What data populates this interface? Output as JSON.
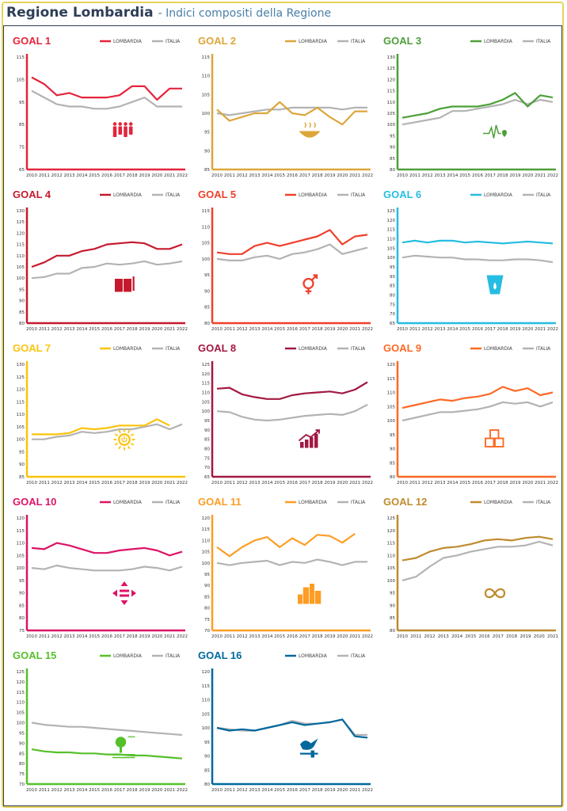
{
  "header": {
    "title": "Regione Lombardia",
    "subtitle": "- Indici compositi della Regione"
  },
  "legend": {
    "region": "LOMBARDIA",
    "country": "ITALIA"
  },
  "colors": {
    "italia": "#b3b3b3",
    "frame": "#e7d45a",
    "border": "#2f3e57"
  },
  "chart_data": [
    {
      "type": "line",
      "title": "GOAL 1",
      "color": "#e5243b",
      "icon": "family-icon",
      "x": [
        "2010",
        "2011",
        "2012",
        "2013",
        "2014",
        "2015",
        "2016",
        "2017",
        "2018",
        "2019",
        "2020",
        "2021",
        "2022"
      ],
      "ylim": [
        65,
        115
      ],
      "yticks": [
        65,
        75,
        85,
        95,
        105,
        115
      ],
      "series": [
        {
          "name": "LOMBARDIA",
          "values": [
            106,
            103,
            98,
            99,
            97,
            97,
            97,
            98,
            102,
            102,
            96,
            101,
            101
          ]
        },
        {
          "name": "ITALIA",
          "values": [
            100,
            97,
            94,
            93,
            93,
            92,
            92,
            93,
            95,
            97,
            93,
            93,
            93
          ]
        }
      ]
    },
    {
      "type": "line",
      "title": "GOAL 2",
      "color": "#dda63a",
      "icon": "bowl-icon",
      "x": [
        "2010",
        "2011",
        "2012",
        "2013",
        "2014",
        "2015",
        "2016",
        "2017",
        "2018",
        "2019",
        "2020",
        "2021",
        "2022"
      ],
      "ylim": [
        85,
        115
      ],
      "yticks": [
        85,
        90,
        95,
        100,
        105,
        110,
        115
      ],
      "series": [
        {
          "name": "LOMBARDIA",
          "values": [
            101,
            98,
            99,
            100,
            100,
            103,
            100,
            99.5,
            101.5,
            99,
            97,
            100.5,
            100.5
          ]
        },
        {
          "name": "ITALIA",
          "values": [
            100,
            99.5,
            100,
            100.5,
            101,
            101,
            101.5,
            101.5,
            101.5,
            101.5,
            101,
            101.5,
            101.5
          ]
        }
      ]
    },
    {
      "type": "line",
      "title": "GOAL 3",
      "color": "#4c9f38",
      "icon": "heartbeat-icon",
      "x": [
        "2010",
        "2011",
        "2012",
        "2013",
        "2014",
        "2015",
        "2016",
        "2017",
        "2018",
        "2019",
        "2020",
        "2021",
        "2022"
      ],
      "ylim": [
        80,
        130
      ],
      "yticks": [
        80,
        85,
        90,
        95,
        100,
        105,
        110,
        115,
        120,
        125,
        130
      ],
      "series": [
        {
          "name": "LOMBARDIA",
          "values": [
            103,
            104,
            105,
            107,
            108,
            108,
            108,
            109,
            111,
            114,
            108,
            113,
            112
          ]
        },
        {
          "name": "ITALIA",
          "values": [
            100,
            101,
            102,
            103,
            106,
            106,
            107,
            108,
            109,
            111,
            109,
            111,
            110
          ]
        }
      ]
    },
    {
      "type": "line",
      "title": "GOAL 4",
      "color": "#c5192d",
      "icon": "book-icon",
      "x": [
        "2010",
        "2011",
        "2012",
        "2013",
        "2014",
        "2015",
        "2016",
        "2017",
        "2018",
        "2019",
        "2020",
        "2021",
        "2022"
      ],
      "ylim": [
        80,
        130
      ],
      "yticks": [
        80,
        85,
        90,
        95,
        100,
        105,
        110,
        115,
        120,
        125,
        130
      ],
      "series": [
        {
          "name": "LOMBARDIA",
          "values": [
            105,
            107,
            110,
            110,
            112,
            113,
            115,
            115.5,
            116,
            115.5,
            113,
            113,
            115
          ]
        },
        {
          "name": "ITALIA",
          "values": [
            100,
            100.5,
            102,
            102,
            104.5,
            105,
            106.5,
            106,
            106.5,
            107.5,
            106,
            106.5,
            107.5
          ]
        }
      ]
    },
    {
      "type": "line",
      "title": "GOAL 5",
      "color": "#ef402b",
      "icon": "gender-icon",
      "x": [
        "2010",
        "2011",
        "2012",
        "2013",
        "2014",
        "2015",
        "2016",
        "2017",
        "2018",
        "2019",
        "2020",
        "2021",
        "2022"
      ],
      "ylim": [
        80,
        115
      ],
      "yticks": [
        80,
        85,
        90,
        95,
        100,
        105,
        110,
        115
      ],
      "series": [
        {
          "name": "LOMBARDIA",
          "values": [
            102,
            101.5,
            101.5,
            104,
            105,
            104,
            105,
            106,
            107,
            109,
            104.5,
            107,
            107.5
          ]
        },
        {
          "name": "ITALIA",
          "values": [
            100,
            99.5,
            99.5,
            100.5,
            101,
            100,
            101.5,
            102,
            103,
            104.5,
            101.5,
            102.5,
            103.5
          ]
        }
      ]
    },
    {
      "type": "line",
      "title": "GOAL 6",
      "color": "#26bde2",
      "icon": "water-drop-icon",
      "x": [
        "2010",
        "2011",
        "2012",
        "2013",
        "2014",
        "2015",
        "2016",
        "2017",
        "2018",
        "2019",
        "2020",
        "2021",
        "2022"
      ],
      "ylim": [
        65,
        125
      ],
      "yticks": [
        65,
        70,
        75,
        80,
        85,
        90,
        95,
        100,
        105,
        110,
        115,
        120,
        125
      ],
      "series": [
        {
          "name": "LOMBARDIA",
          "values": [
            108,
            109,
            108,
            109,
            109,
            108,
            108.5,
            108,
            107.5,
            108,
            108.5,
            108,
            107.5
          ]
        },
        {
          "name": "ITALIA",
          "values": [
            100,
            101,
            100.5,
            100,
            100,
            99,
            99,
            98.5,
            98.5,
            99,
            99,
            98.5,
            97.5
          ]
        }
      ]
    },
    {
      "type": "line",
      "title": "GOAL 7",
      "color": "#fcc30b",
      "icon": "sun-power-icon",
      "x": [
        "2010",
        "2011",
        "2012",
        "2013",
        "2014",
        "2015",
        "2016",
        "2017",
        "2018",
        "2019",
        "2020",
        "2021",
        "2022"
      ],
      "ylim": [
        85,
        130
      ],
      "yticks": [
        85,
        90,
        95,
        100,
        105,
        110,
        115,
        120,
        125,
        130
      ],
      "series": [
        {
          "name": "LOMBARDIA",
          "values": [
            102,
            102,
            102,
            102.5,
            104.5,
            104,
            104.5,
            105.5,
            105.5,
            105.5,
            108,
            105.5,
            null
          ]
        },
        {
          "name": "ITALIA",
          "values": [
            100,
            100,
            101,
            101.5,
            103,
            102.5,
            103,
            104,
            104,
            105,
            106,
            104,
            106
          ]
        }
      ]
    },
    {
      "type": "line",
      "title": "GOAL 8",
      "color": "#a21942",
      "icon": "growth-chart-icon",
      "x": [
        "2010",
        "2011",
        "2012",
        "2013",
        "2014",
        "2015",
        "2016",
        "2017",
        "2018",
        "2019",
        "2020",
        "2021",
        "2022"
      ],
      "ylim": [
        65,
        125
      ],
      "yticks": [
        65,
        70,
        75,
        80,
        85,
        90,
        95,
        100,
        105,
        110,
        115,
        120,
        125
      ],
      "series": [
        {
          "name": "LOMBARDIA",
          "values": [
            112,
            112.5,
            109,
            107.5,
            106.5,
            106.5,
            108.5,
            109.5,
            110,
            110.5,
            109.5,
            111.5,
            115.5
          ]
        },
        {
          "name": "ITALIA",
          "values": [
            100,
            99.5,
            97,
            95.5,
            95,
            95.5,
            96.5,
            97.5,
            98,
            98.5,
            98,
            100,
            103.5
          ]
        }
      ]
    },
    {
      "type": "line",
      "title": "GOAL 9",
      "color": "#fd6925",
      "icon": "cubes-icon",
      "x": [
        "2010",
        "2011",
        "2012",
        "2013",
        "2014",
        "2015",
        "2016",
        "2017",
        "2018",
        "2019",
        "2020",
        "2021",
        "2022"
      ],
      "ylim": [
        80,
        120
      ],
      "yticks": [
        80,
        85,
        90,
        95,
        100,
        105,
        110,
        115,
        120
      ],
      "series": [
        {
          "name": "LOMBARDIA",
          "values": [
            104.5,
            105.5,
            106.5,
            107.5,
            107,
            108,
            108.5,
            109.5,
            112,
            110.5,
            111.5,
            109,
            110
          ]
        },
        {
          "name": "ITALIA",
          "values": [
            100,
            101,
            102,
            103,
            103,
            103.5,
            104,
            105,
            106.5,
            106,
            106.5,
            105,
            106.5
          ]
        }
      ]
    },
    {
      "type": "line",
      "title": "GOAL 10",
      "color": "#dd1367",
      "icon": "equality-arrows-icon",
      "x": [
        "2010",
        "2011",
        "2012",
        "2013",
        "2014",
        "2015",
        "2016",
        "2017",
        "2018",
        "2019",
        "2020",
        "2021",
        "2022"
      ],
      "ylim": [
        75,
        120
      ],
      "yticks": [
        75,
        80,
        85,
        90,
        95,
        100,
        105,
        110,
        115,
        120
      ],
      "series": [
        {
          "name": "LOMBARDIA",
          "values": [
            108,
            107.5,
            110,
            109,
            107.5,
            106,
            106,
            107,
            107.5,
            108,
            107,
            105,
            106.5
          ]
        },
        {
          "name": "ITALIA",
          "values": [
            100,
            99.5,
            101,
            100,
            99.5,
            99,
            99,
            99,
            99.5,
            100.5,
            100,
            99,
            100.5
          ]
        }
      ]
    },
    {
      "type": "line",
      "title": "GOAL 11",
      "color": "#fd9d24",
      "icon": "city-icon",
      "x": [
        "2010",
        "2011",
        "2012",
        "2013",
        "2014",
        "2015",
        "2016",
        "2017",
        "2018",
        "2019",
        "2020",
        "2021",
        "2022"
      ],
      "ylim": [
        70,
        120
      ],
      "yticks": [
        70,
        75,
        80,
        85,
        90,
        95,
        100,
        105,
        110,
        115,
        120
      ],
      "series": [
        {
          "name": "LOMBARDIA",
          "values": [
            107,
            103,
            107,
            110,
            111.5,
            107,
            111,
            108,
            112.5,
            112,
            109,
            113,
            null
          ]
        },
        {
          "name": "ITALIA",
          "values": [
            100,
            99,
            100,
            100.5,
            101,
            99,
            100.5,
            100,
            101.5,
            100.5,
            99,
            100.5,
            100.5
          ]
        }
      ]
    },
    {
      "type": "line",
      "title": "GOAL 12",
      "color": "#bf8b2e",
      "icon": "infinity-icon",
      "x": [
        "2010",
        "2011",
        "2012",
        "2013",
        "2014",
        "2015",
        "2016",
        "2017",
        "2018",
        "2019",
        "2020",
        "2021"
      ],
      "ylim": [
        80,
        125
      ],
      "yticks": [
        80,
        85,
        90,
        95,
        100,
        105,
        110,
        115,
        120,
        125
      ],
      "series": [
        {
          "name": "LOMBARDIA",
          "values": [
            108,
            109,
            111.5,
            113,
            113.5,
            114.5,
            116,
            116.5,
            116,
            117,
            117.5,
            116.5
          ]
        },
        {
          "name": "ITALIA",
          "values": [
            100,
            101.5,
            105.5,
            109,
            110,
            111.5,
            112.5,
            113.5,
            113.5,
            114,
            115.5,
            114
          ]
        }
      ]
    },
    {
      "type": "line",
      "title": "GOAL 15",
      "color": "#56c02b",
      "icon": "tree-icon",
      "x": [
        "2010",
        "2011",
        "2012",
        "2013",
        "2014",
        "2015",
        "2016",
        "2017",
        "2018",
        "2019",
        "2020",
        "2021",
        "2022"
      ],
      "ylim": [
        70,
        125
      ],
      "yticks": [
        70,
        75,
        80,
        85,
        90,
        95,
        100,
        105,
        110,
        115,
        120,
        125
      ],
      "series": [
        {
          "name": "LOMBARDIA",
          "values": [
            87,
            86,
            85.5,
            85.5,
            85,
            85,
            84.5,
            84.5,
            84,
            84,
            83.5,
            83,
            82.5
          ]
        },
        {
          "name": "ITALIA",
          "values": [
            100,
            99,
            98.5,
            98,
            98,
            97.5,
            97,
            96.5,
            96,
            95.5,
            95,
            94.5,
            94
          ]
        }
      ]
    },
    {
      "type": "line",
      "title": "GOAL 16",
      "color": "#00689d",
      "icon": "dove-gavel-icon",
      "x": [
        "2010",
        "2011",
        "2012",
        "2013",
        "2014",
        "2015",
        "2016",
        "2017",
        "2018",
        "2019",
        "2020",
        "2021",
        "2022"
      ],
      "ylim": [
        80,
        120
      ],
      "yticks": [
        80,
        85,
        90,
        95,
        100,
        105,
        110,
        115,
        120
      ],
      "series": [
        {
          "name": "LOMBARDIA",
          "values": [
            100,
            99,
            99.5,
            99,
            100,
            101,
            102,
            101,
            101.5,
            102,
            103,
            97,
            96.5
          ]
        },
        {
          "name": "ITALIA",
          "values": [
            100,
            99.5,
            99,
            99,
            100,
            101,
            102.5,
            101.5,
            101.5,
            102,
            103,
            97.5,
            97.5
          ]
        }
      ]
    }
  ]
}
